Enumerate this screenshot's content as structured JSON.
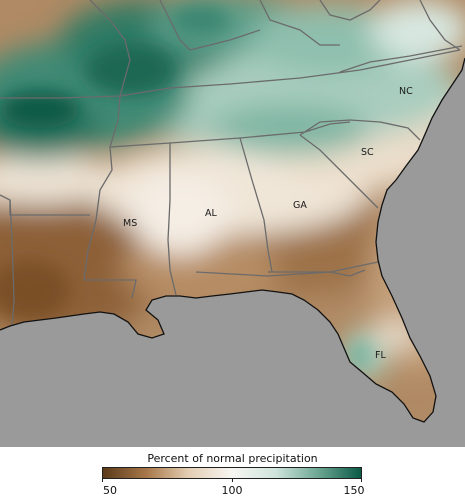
{
  "legend": {
    "title": "Percent of normal precipitation",
    "min": 50,
    "mid": 100,
    "max": 150,
    "colors": [
      "#5b3a1a",
      "#a8784a",
      "#e3cdb2",
      "#f8f6f2",
      "#cfe4dc",
      "#6fa894",
      "#0b5a47"
    ]
  },
  "colors": {
    "water": "#9a9a9a",
    "borders": "#6b6b6b",
    "coast": "#111111"
  },
  "states": [
    {
      "abbr": "NC"
    },
    {
      "abbr": "SC"
    },
    {
      "abbr": "GA"
    },
    {
      "abbr": "AL"
    },
    {
      "abbr": "MS"
    },
    {
      "abbr": "FL"
    }
  ]
}
